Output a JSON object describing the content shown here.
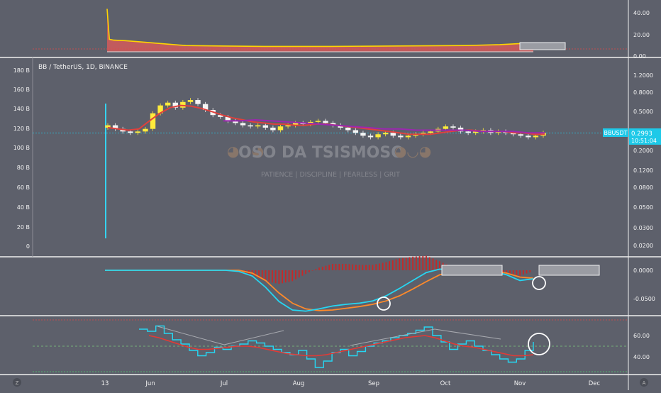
{
  "symbol": {
    "info": "BB / TetherUS, 1D, BINANCE",
    "ticker": "BBUSDT",
    "price": "0.2993",
    "countdown": "10:51:04",
    "tag_color": "#1ec9e8"
  },
  "watermark": {
    "title": "OSO DA TSISMOSO",
    "tagline": "PATIENCE  |  DISCIPLINE  |  FEARLESS  |  GRIT"
  },
  "chart_data": [
    {
      "panel": "top-indicator",
      "type": "area",
      "right_axis_ticks": [
        "40.00",
        "20.00",
        "0.00"
      ],
      "ylim": [
        0,
        50
      ],
      "series": [
        {
          "x": [
            0,
            1,
            3,
            8,
            15,
            25,
            35,
            50,
            70,
            100,
            130,
            160,
            175,
            190
          ],
          "values": [
            48,
            14,
            13,
            12.5,
            11,
            9,
            7,
            6.5,
            6,
            6,
            6.5,
            7,
            8,
            10
          ]
        }
      ]
    },
    {
      "panel": "price",
      "type": "candlestick",
      "left_axis_ticks": [
        "180 B",
        "160 B",
        "140 B",
        "120 B",
        "100 B",
        "80 B",
        "60 B",
        "40 B",
        "20 B",
        "0"
      ],
      "right_axis_ticks": [
        "1.2000",
        "0.8000",
        "0.5000",
        "0.3000",
        "0.2000",
        "0.1200",
        "0.0800",
        "0.0500",
        "0.0300",
        "0.0200"
      ],
      "last_price": 0.2993,
      "close": [
        0.36,
        0.33,
        0.31,
        0.3,
        0.31,
        0.33,
        0.48,
        0.58,
        0.62,
        0.55,
        0.63,
        0.66,
        0.6,
        0.52,
        0.46,
        0.44,
        0.4,
        0.38,
        0.36,
        0.35,
        0.36,
        0.34,
        0.32,
        0.35,
        0.36,
        0.38,
        0.37,
        0.39,
        0.4,
        0.38,
        0.36,
        0.34,
        0.32,
        0.3,
        0.28,
        0.27,
        0.29,
        0.3,
        0.28,
        0.27,
        0.28,
        0.29,
        0.3,
        0.31,
        0.33,
        0.35,
        0.34,
        0.31,
        0.3,
        0.31,
        0.32,
        0.3,
        0.31,
        0.3,
        0.29,
        0.28,
        0.27,
        0.28,
        0.3
      ],
      "ma_red": [
        0.34,
        0.33,
        0.32,
        0.33,
        0.4,
        0.48,
        0.55,
        0.58,
        0.57,
        0.54,
        0.5,
        0.46,
        0.43,
        0.41,
        0.39,
        0.38,
        0.37,
        0.37,
        0.36,
        0.36,
        0.37,
        0.37,
        0.36,
        0.35,
        0.34,
        0.33,
        0.32,
        0.31,
        0.3,
        0.29,
        0.29,
        0.29,
        0.3,
        0.31,
        0.32,
        0.32,
        0.31,
        0.31,
        0.31,
        0.3,
        0.3,
        0.29,
        0.29
      ],
      "ma_purple": [
        0.4,
        0.4,
        0.41,
        0.4,
        0.39,
        0.38,
        0.37,
        0.36,
        0.35,
        0.34,
        0.33,
        0.33,
        0.32,
        0.32,
        0.32,
        0.32,
        0.31,
        0.31,
        0.31,
        0.3,
        0.3
      ]
    },
    {
      "panel": "macd",
      "type": "line",
      "right_axis_ticks": [
        "0.0000",
        "-0.0500"
      ],
      "ylim": [
        -0.075,
        0.015
      ],
      "macd": [
        0,
        0,
        0,
        0,
        0,
        0,
        0,
        0,
        0,
        0,
        -0.002,
        -0.01,
        -0.03,
        -0.055,
        -0.07,
        -0.072,
        -0.068,
        -0.063,
        -0.06,
        -0.058,
        -0.054,
        -0.045,
        -0.032,
        -0.018,
        -0.004,
        0.002,
        0.001,
        0,
        0,
        -0.002,
        -0.008,
        -0.018,
        -0.015
      ],
      "signal": [
        0,
        0,
        0,
        0,
        0,
        0,
        0,
        0,
        0,
        0,
        0,
        -0.005,
        -0.018,
        -0.04,
        -0.058,
        -0.068,
        -0.071,
        -0.07,
        -0.067,
        -0.064,
        -0.06,
        -0.054,
        -0.045,
        -0.033,
        -0.02,
        -0.008,
        -0.002,
        0,
        0,
        -0.001,
        -0.005,
        -0.012,
        -0.014
      ]
    },
    {
      "panel": "rsi",
      "type": "line",
      "right_axis_ticks": [
        "60.00",
        "40.00"
      ],
      "ylim": [
        25,
        75
      ],
      "rsi": [
        66,
        64,
        69,
        62,
        56,
        52,
        46,
        41,
        44,
        49,
        47,
        50,
        52,
        55,
        53,
        50,
        47,
        44,
        42,
        46,
        38,
        30,
        36,
        44,
        47,
        41,
        45,
        50,
        53,
        55,
        58,
        60,
        62,
        65,
        68,
        60,
        54,
        47,
        52,
        55,
        50,
        46,
        42,
        38,
        35,
        38,
        46,
        54
      ],
      "ma": [
        60,
        58,
        55,
        52,
        49,
        47,
        47,
        48,
        49,
        50,
        50,
        49,
        47,
        45,
        43,
        42,
        41,
        41,
        42,
        44,
        46,
        48,
        50,
        52,
        54,
        56,
        58,
        59,
        60,
        58,
        55,
        52,
        50,
        49,
        47,
        45,
        43,
        41,
        41,
        42
      ]
    }
  ],
  "x_axis": {
    "labels": [
      "13",
      "Jun",
      "Jul",
      "Aug",
      "Sep",
      "Oct",
      "Nov",
      "Dec"
    ]
  },
  "colors": {
    "background": "#5d606b",
    "candle_up": "#ffeb3b",
    "candle_down": "#f5f5f5",
    "ma_red": "#e0403c",
    "ma_purple": "#9c27b0",
    "macd_line": "#26d6f2",
    "signal_line": "#ff8a2a",
    "histogram": "#c62828",
    "rsi_line": "#26d6f2",
    "rsi_ma": "#e53935",
    "area_fill": "#d45a5a",
    "area_line": "#ffd500"
  }
}
